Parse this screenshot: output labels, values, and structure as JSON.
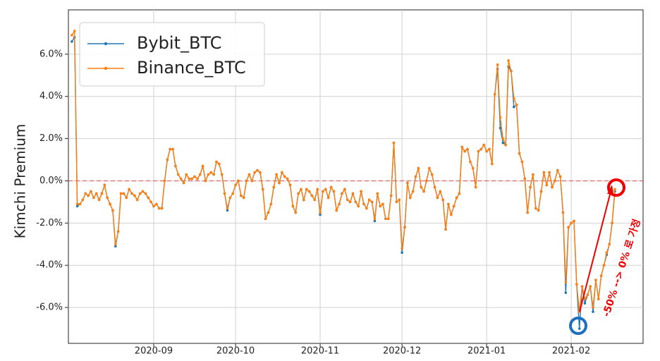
{
  "chart_data": {
    "type": "line",
    "y_label": "Kimchi Premium",
    "annotation": "-50% --> 0% 로 가정",
    "ylim": [
      -7.7,
      8.1
    ],
    "yticks": [
      {
        "value": -6,
        "label": "-6.0%"
      },
      {
        "value": -4,
        "label": "-4.0%"
      },
      {
        "value": -2,
        "label": "-2.0%"
      },
      {
        "value": 0,
        "label": "0.0%"
      },
      {
        "value": 2,
        "label": "2.0%"
      },
      {
        "value": 4,
        "label": "4.0%"
      },
      {
        "value": 6,
        "label": "6.0%"
      }
    ],
    "grid": true,
    "legend": "upper left",
    "hline": {
      "value": 0,
      "color": "#e06666"
    },
    "categories": [
      null,
      null,
      null,
      null,
      null,
      null,
      null,
      null,
      null,
      null,
      null,
      null,
      null,
      null,
      null,
      null,
      null,
      null,
      null,
      null,
      null,
      null,
      null,
      null,
      null,
      null,
      null,
      null,
      null,
      null,
      null,
      "2020-09",
      null,
      null,
      null,
      null,
      null,
      null,
      null,
      null,
      null,
      null,
      null,
      null,
      null,
      null,
      null,
      null,
      null,
      null,
      null,
      null,
      null,
      null,
      null,
      null,
      null,
      null,
      null,
      null,
      null,
      "2020-10",
      null,
      null,
      null,
      null,
      null,
      null,
      null,
      null,
      null,
      null,
      null,
      null,
      null,
      null,
      null,
      null,
      null,
      null,
      null,
      null,
      null,
      null,
      null,
      null,
      null,
      null,
      null,
      null,
      null,
      null,
      "2020-11",
      null,
      null,
      null,
      null,
      null,
      null,
      null,
      null,
      null,
      null,
      null,
      null,
      null,
      null,
      null,
      null,
      null,
      null,
      null,
      null,
      null,
      null,
      null,
      null,
      null,
      null,
      null,
      null,
      null,
      "2020-12",
      null,
      null,
      null,
      null,
      null,
      null,
      null,
      null,
      null,
      null,
      null,
      null,
      null,
      null,
      null,
      null,
      null,
      null,
      null,
      null,
      null,
      null,
      null,
      null,
      null,
      null,
      null,
      null,
      null,
      null,
      "2021-01",
      null,
      null,
      null,
      null,
      null,
      null,
      null,
      null,
      null,
      null,
      null,
      null,
      null,
      null,
      null,
      null,
      null,
      null,
      null,
      null,
      null,
      null,
      null,
      null,
      null,
      null,
      null,
      null,
      null,
      null,
      "2021-02",
      null,
      null,
      null,
      null,
      null,
      null,
      null,
      null,
      null,
      null,
      null,
      null,
      null,
      null,
      null,
      null
    ],
    "series": [
      {
        "name": "Bybit_BTC",
        "color": "#1f77b4",
        "values": [
          null,
          6.6,
          6.8,
          -1.2,
          -1.1,
          -0.9,
          -0.6,
          -0.7,
          -0.5,
          -0.8,
          -0.6,
          -0.9,
          -0.6,
          -0.2,
          -0.8,
          -1.1,
          -1.4,
          -3.1,
          -2.4,
          -0.6,
          -0.6,
          -0.8,
          -0.4,
          -0.6,
          -0.7,
          -0.9,
          -0.6,
          -0.5,
          -0.6,
          -0.8,
          -1.0,
          -1.2,
          -1.1,
          -1.3,
          -1.3,
          0.0,
          1.0,
          1.5,
          1.5,
          0.7,
          0.3,
          0.1,
          -0.1,
          0.3,
          0.1,
          0.1,
          0.2,
          0.1,
          0.3,
          0.7,
          0.0,
          0.3,
          0.4,
          0.3,
          0.9,
          0.8,
          0.3,
          -0.6,
          -1.4,
          -0.8,
          -0.6,
          -0.2,
          0.0,
          -0.7,
          -0.8,
          0.0,
          0.3,
          0.0,
          0.4,
          0.5,
          0.4,
          -0.4,
          -1.8,
          -1.5,
          -1.1,
          -0.3,
          0.3,
          -0.1,
          0.4,
          0.2,
          0.1,
          -0.2,
          -1.2,
          -1.5,
          -0.6,
          -0.4,
          -0.9,
          -0.4,
          -0.5,
          -0.7,
          -0.9,
          -0.4,
          -1.6,
          -0.5,
          -0.4,
          -0.8,
          -0.3,
          -0.5,
          -1.4,
          -1.1,
          -0.6,
          -0.4,
          -0.9,
          -1.0,
          -0.6,
          -1.0,
          -1.2,
          -0.5,
          -1.1,
          -1.3,
          -0.9,
          -1.0,
          -1.9,
          -0.6,
          -1.2,
          -1.1,
          -1.8,
          -1.8,
          -0.7,
          1.8,
          -1.0,
          -0.9,
          -3.4,
          -2.2,
          -0.1,
          -0.8,
          -0.5,
          0.2,
          0.6,
          -0.3,
          -0.5,
          0.0,
          0.6,
          0.3,
          -0.3,
          -0.8,
          -0.5,
          -0.9,
          -2.3,
          -1.1,
          -1.6,
          -1.2,
          -0.8,
          -0.6,
          1.6,
          1.4,
          1.5,
          0.9,
          0.6,
          -0.3,
          1.4,
          1.5,
          1.7,
          1.4,
          1.5,
          0.8,
          4.1,
          5.3,
          2.5,
          1.8,
          1.7,
          5.4,
          5.2,
          3.5,
          3.6,
          1.3,
          0.9,
          0.1,
          -1.5,
          -0.3,
          0.3,
          -1.3,
          -1.4,
          -0.5,
          0.4,
          -0.2,
          0.4,
          -0.3,
          0.0,
          0.5,
          0.2,
          -1.5,
          -5.3,
          -2.2,
          -2.0,
          -1.9,
          -4.9,
          -7.0,
          -5.0,
          -5.8,
          -5.4,
          -5.0,
          -6.2,
          -4.7,
          -5.6,
          -4.5,
          -4.0,
          -3.5,
          -3.0,
          -2.0,
          -0.5
        ]
      },
      {
        "name": "Binance_BTC",
        "color": "#ff7f0e",
        "values": [
          null,
          6.9,
          7.1,
          -1.1,
          -1.1,
          -0.9,
          -0.6,
          -0.7,
          -0.5,
          -0.8,
          -0.6,
          -0.9,
          -0.6,
          -0.2,
          -0.8,
          -1.1,
          -1.4,
          -3.0,
          -2.4,
          -0.6,
          -0.6,
          -0.8,
          -0.4,
          -0.6,
          -0.7,
          -0.9,
          -0.6,
          -0.5,
          -0.6,
          -0.8,
          -1.0,
          -1.2,
          -1.1,
          -1.3,
          -1.3,
          0.0,
          1.0,
          1.5,
          1.5,
          0.7,
          0.3,
          0.1,
          -0.1,
          0.3,
          0.1,
          0.1,
          0.2,
          0.1,
          0.3,
          0.7,
          0.0,
          0.3,
          0.4,
          0.3,
          0.9,
          0.8,
          0.3,
          -0.6,
          -1.3,
          -0.8,
          -0.6,
          -0.2,
          0.0,
          -0.7,
          -0.8,
          0.0,
          0.3,
          0.0,
          0.4,
          0.5,
          0.4,
          -0.4,
          -1.8,
          -1.5,
          -1.1,
          -0.3,
          0.3,
          -0.1,
          0.4,
          0.2,
          0.1,
          -0.2,
          -1.2,
          -1.5,
          -0.6,
          -0.4,
          -0.9,
          -0.4,
          -0.5,
          -0.7,
          -0.9,
          -0.4,
          -1.5,
          -0.5,
          -0.4,
          -0.8,
          -0.3,
          -0.5,
          -1.4,
          -1.1,
          -0.6,
          -0.4,
          -0.9,
          -1.0,
          -0.6,
          -1.0,
          -1.2,
          -0.5,
          -1.1,
          -1.3,
          -0.9,
          -1.0,
          -1.8,
          -0.6,
          -1.2,
          -1.1,
          -1.8,
          -1.8,
          -0.7,
          1.8,
          -1.0,
          -0.9,
          -3.2,
          -2.2,
          -0.1,
          -0.8,
          -0.5,
          0.2,
          0.6,
          -0.3,
          -0.5,
          0.0,
          0.6,
          0.3,
          -0.3,
          -0.8,
          -0.5,
          -0.9,
          -2.3,
          -1.1,
          -1.6,
          -1.2,
          -0.8,
          -0.6,
          1.6,
          1.4,
          1.5,
          0.9,
          0.6,
          -0.3,
          1.4,
          1.5,
          1.7,
          1.4,
          1.5,
          0.8,
          4.1,
          5.5,
          3.0,
          2.0,
          1.7,
          5.7,
          5.2,
          3.9,
          3.6,
          1.3,
          0.9,
          0.1,
          -1.5,
          -0.3,
          0.3,
          -1.3,
          -1.4,
          -0.5,
          0.4,
          -0.2,
          0.4,
          -0.3,
          0.0,
          0.5,
          0.2,
          -1.5,
          -4.8,
          -2.2,
          -2.0,
          -1.9,
          -4.9,
          -6.2,
          -5.0,
          -5.6,
          -5.4,
          -5.0,
          -6.0,
          -4.7,
          -5.6,
          -4.5,
          -4.0,
          -3.4,
          -3.0,
          -2.0,
          -0.4
        ]
      }
    ]
  }
}
